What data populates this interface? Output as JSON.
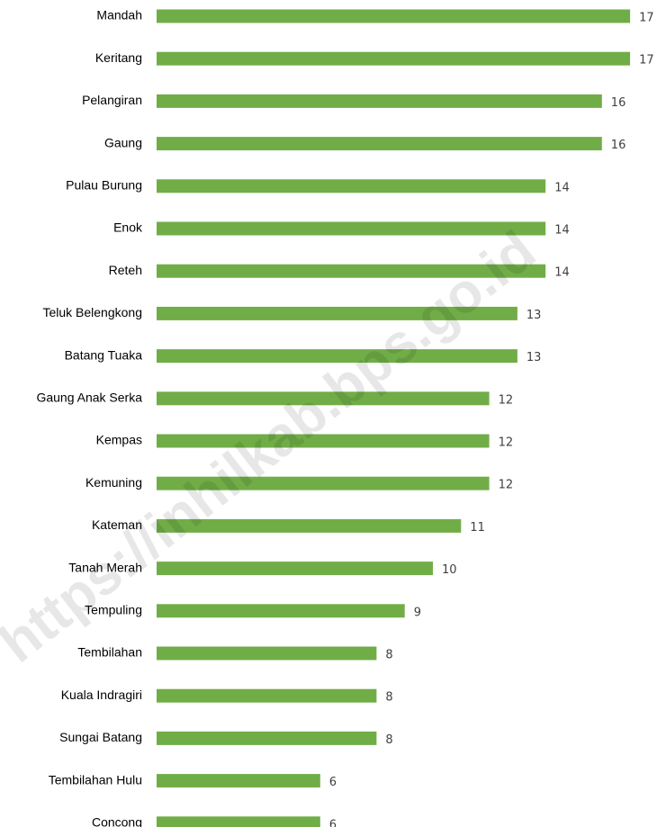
{
  "chart_data": {
    "type": "bar",
    "orientation": "horizontal",
    "categories": [
      "Mandah",
      "Keritang",
      "Pelangiran",
      "Gaung",
      "Pulau Burung",
      "Enok",
      "Reteh",
      "Teluk Belengkong",
      "Batang Tuaka",
      "Gaung Anak Serka",
      "Kempas",
      "Kemuning",
      "Kateman",
      "Tanah Merah",
      "Tempuling",
      "Tembilahan",
      "Kuala Indragiri",
      "Sungai Batang",
      "Tembilahan Hulu",
      "Concong"
    ],
    "values": [
      17,
      17,
      16,
      16,
      14,
      14,
      14,
      13,
      13,
      12,
      12,
      12,
      11,
      10,
      9,
      8,
      8,
      8,
      6,
      6
    ],
    "color": "#70ad47",
    "watermark": "https://inhilkab.bps.go.id"
  }
}
